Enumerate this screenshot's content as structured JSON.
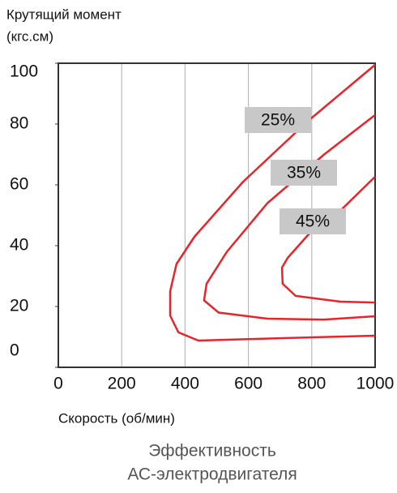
{
  "chart_data": {
    "type": "line",
    "ylabel": [
      "Крутящий момент",
      "(кгс.см)"
    ],
    "xlabel": "Скорость (об/мин)",
    "caption": [
      "Эффективность",
      "АС-электродвигателя"
    ],
    "xlim": [
      0,
      1000
    ],
    "xticks": [
      0,
      200,
      400,
      600,
      800,
      1000
    ],
    "ylim": [
      0,
      100
    ],
    "yticks": [
      0,
      20,
      40,
      60,
      80,
      100
    ],
    "grid": true,
    "series": [
      {
        "name": "25%",
        "color": "#e8242a",
        "x": [
          1000,
          788,
          583,
          430,
          373,
          353,
          353,
          379,
          442,
          711,
          1000
        ],
        "values": [
          99.5,
          81,
          61,
          43,
          34,
          25,
          17,
          11.5,
          8.8,
          9.6,
          10.4
        ]
      },
      {
        "name": "35%",
        "color": "#e8242a",
        "x": [
          1000,
          839,
          660,
          532,
          468,
          460,
          506,
          660,
          839,
          1000
        ],
        "values": [
          83,
          70,
          54,
          38,
          27.5,
          22,
          18,
          16,
          15.7,
          16.8
        ]
      },
      {
        "name": "45%",
        "color": "#e8242a",
        "x": [
          1000,
          890,
          788,
          724,
          706,
          708,
          749,
          890,
          1000
        ],
        "values": [
          62.7,
          51.5,
          43.5,
          36,
          32.8,
          27.5,
          23.5,
          21.6,
          21.3
        ]
      }
    ]
  }
}
